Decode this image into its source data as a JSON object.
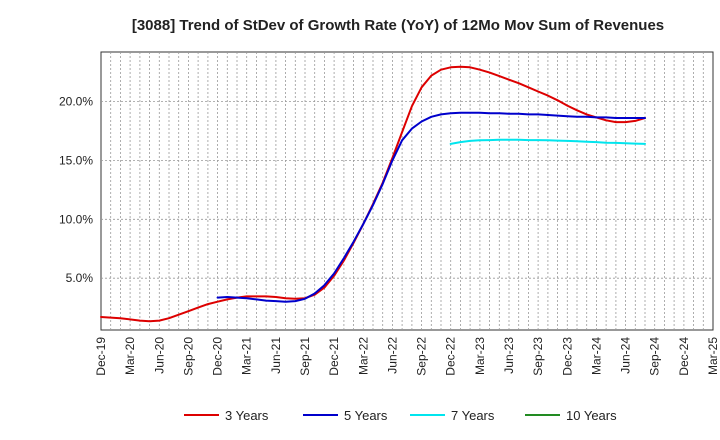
{
  "chart_data": {
    "type": "line",
    "title": "[3088]  Trend of StDev of Growth Rate (YoY) of 12Mo Mov Sum of Revenues",
    "xlabel": "",
    "ylabel": "",
    "x_start": "2019-12",
    "x_tick_labels": [
      "Dec-19",
      "Mar-20",
      "Jun-20",
      "Sep-20",
      "Dec-20",
      "Mar-21",
      "Jun-21",
      "Sep-21",
      "Dec-21",
      "Mar-22",
      "Jun-22",
      "Sep-22",
      "Dec-22",
      "Mar-23",
      "Jun-23",
      "Sep-23",
      "Dec-23",
      "Mar-24",
      "Jun-24",
      "Sep-24",
      "Dec-24",
      "Mar-25"
    ],
    "y_ticks": [
      5.0,
      10.0,
      15.0,
      20.0
    ],
    "y_tick_labels": [
      "5.0%",
      "10.0%",
      "15.0%",
      "20.0%"
    ],
    "ylim": [
      0.6,
      24.2
    ],
    "xlim_months": [
      0,
      63
    ],
    "grid": true,
    "legend_position": "bottom",
    "series": [
      {
        "name": "3 Years",
        "color": "#dd0000",
        "points": [
          [
            0,
            1.7
          ],
          [
            2,
            1.6
          ],
          [
            4,
            1.4
          ],
          [
            5,
            1.35
          ],
          [
            6,
            1.4
          ],
          [
            7,
            1.6
          ],
          [
            8,
            1.9
          ],
          [
            9,
            2.2
          ],
          [
            10,
            2.5
          ],
          [
            11,
            2.8
          ],
          [
            12,
            3.0
          ],
          [
            13,
            3.2
          ],
          [
            14,
            3.35
          ],
          [
            15,
            3.45
          ],
          [
            16,
            3.45
          ],
          [
            17,
            3.45
          ],
          [
            18,
            3.4
          ],
          [
            19,
            3.3
          ],
          [
            20,
            3.25
          ],
          [
            21,
            3.3
          ],
          [
            22,
            3.6
          ],
          [
            23,
            4.2
          ],
          [
            24,
            5.2
          ],
          [
            25,
            6.5
          ],
          [
            26,
            8.0
          ],
          [
            27,
            9.6
          ],
          [
            28,
            11.3
          ],
          [
            29,
            13.1
          ],
          [
            30,
            15.2
          ],
          [
            31,
            17.4
          ],
          [
            32,
            19.6
          ],
          [
            33,
            21.2
          ],
          [
            34,
            22.2
          ],
          [
            35,
            22.7
          ],
          [
            36,
            22.9
          ],
          [
            37,
            22.95
          ],
          [
            38,
            22.9
          ],
          [
            39,
            22.7
          ],
          [
            40,
            22.45
          ],
          [
            41,
            22.15
          ],
          [
            42,
            21.85
          ],
          [
            43,
            21.55
          ],
          [
            44,
            21.2
          ],
          [
            45,
            20.85
          ],
          [
            46,
            20.5
          ],
          [
            47,
            20.1
          ],
          [
            48,
            19.65
          ],
          [
            49,
            19.25
          ],
          [
            50,
            18.9
          ],
          [
            51,
            18.65
          ],
          [
            52,
            18.4
          ],
          [
            53,
            18.25
          ],
          [
            54,
            18.25
          ],
          [
            55,
            18.35
          ],
          [
            56,
            18.6
          ]
        ]
      },
      {
        "name": "5 Years",
        "color": "#0000cc",
        "points": [
          [
            12,
            3.35
          ],
          [
            13,
            3.4
          ],
          [
            14,
            3.35
          ],
          [
            15,
            3.3
          ],
          [
            16,
            3.2
          ],
          [
            17,
            3.1
          ],
          [
            18,
            3.05
          ],
          [
            19,
            3.0
          ],
          [
            20,
            3.05
          ],
          [
            21,
            3.25
          ],
          [
            22,
            3.7
          ],
          [
            23,
            4.4
          ],
          [
            24,
            5.4
          ],
          [
            25,
            6.7
          ],
          [
            26,
            8.1
          ],
          [
            27,
            9.6
          ],
          [
            28,
            11.2
          ],
          [
            29,
            13.0
          ],
          [
            30,
            15.0
          ],
          [
            31,
            16.7
          ],
          [
            32,
            17.7
          ],
          [
            33,
            18.3
          ],
          [
            34,
            18.7
          ],
          [
            35,
            18.9
          ],
          [
            36,
            19.0
          ],
          [
            37,
            19.05
          ],
          [
            38,
            19.05
          ],
          [
            39,
            19.05
          ],
          [
            40,
            19.0
          ],
          [
            41,
            19.0
          ],
          [
            42,
            18.95
          ],
          [
            43,
            18.95
          ],
          [
            44,
            18.9
          ],
          [
            45,
            18.9
          ],
          [
            46,
            18.85
          ],
          [
            47,
            18.8
          ],
          [
            48,
            18.75
          ],
          [
            49,
            18.7
          ],
          [
            50,
            18.7
          ],
          [
            51,
            18.65
          ],
          [
            52,
            18.65
          ],
          [
            53,
            18.6
          ],
          [
            54,
            18.6
          ],
          [
            55,
            18.6
          ],
          [
            56,
            18.6
          ]
        ]
      },
      {
        "name": "7 Years",
        "color": "#00e5ee",
        "points": [
          [
            36,
            16.4
          ],
          [
            37,
            16.55
          ],
          [
            38,
            16.65
          ],
          [
            39,
            16.7
          ],
          [
            40,
            16.72
          ],
          [
            41,
            16.75
          ],
          [
            42,
            16.75
          ],
          [
            43,
            16.75
          ],
          [
            44,
            16.72
          ],
          [
            45,
            16.72
          ],
          [
            46,
            16.7
          ],
          [
            47,
            16.68
          ],
          [
            48,
            16.65
          ],
          [
            49,
            16.62
          ],
          [
            50,
            16.58
          ],
          [
            51,
            16.55
          ],
          [
            52,
            16.5
          ],
          [
            53,
            16.48
          ],
          [
            54,
            16.45
          ],
          [
            55,
            16.42
          ],
          [
            56,
            16.4
          ]
        ]
      },
      {
        "name": "10 Years",
        "color": "#228b22",
        "points": []
      }
    ]
  }
}
